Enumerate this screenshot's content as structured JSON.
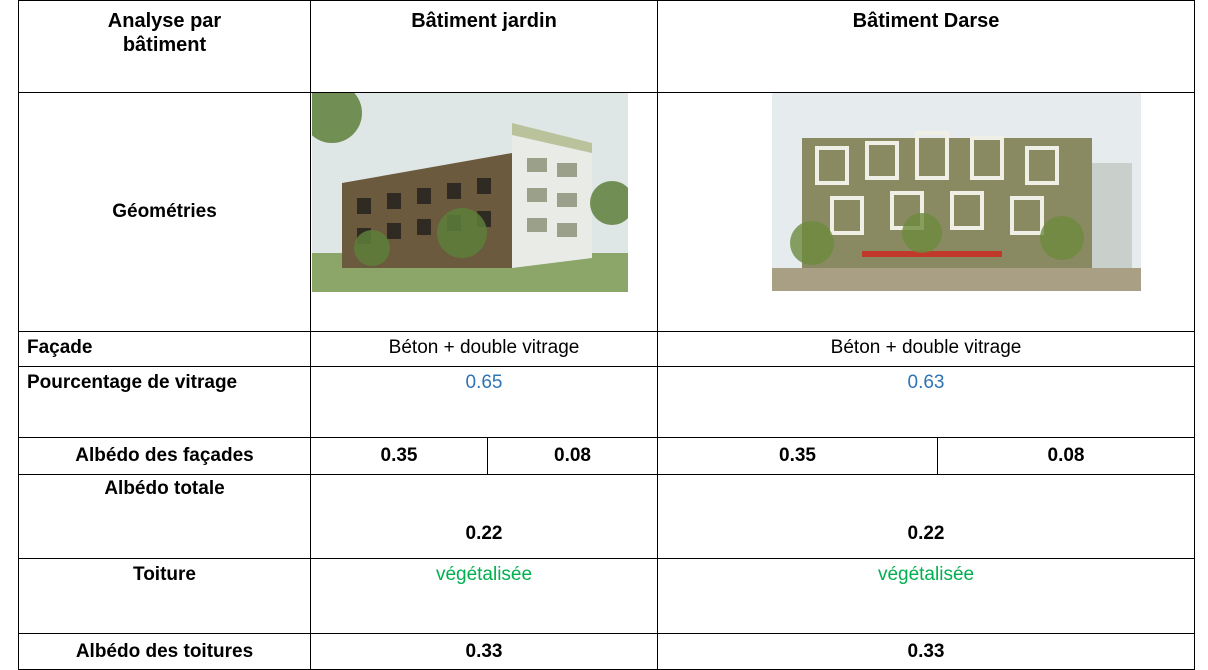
{
  "header": {
    "title_col": "Analyse par bâtiment",
    "buildings": [
      "Bâtiment jardin",
      "Bâtiment Darse"
    ]
  },
  "rows": {
    "geometry": {
      "label": "Géométries"
    },
    "facade": {
      "label": "Façade",
      "values": [
        "Béton + double vitrage",
        "Béton + double vitrage"
      ]
    },
    "glazing": {
      "label": "Pourcentage de vitrage",
      "values": [
        0.65,
        0.63
      ]
    },
    "facade_albedo": {
      "label": "Albédo des façades",
      "values": [
        [
          0.35,
          0.08
        ],
        [
          0.35,
          0.08
        ]
      ]
    },
    "total_albedo": {
      "label": "Albédo totale",
      "values": [
        0.22,
        0.22
      ]
    },
    "roof": {
      "label": "Toiture",
      "values": [
        "végétalisée",
        "végétalisée"
      ]
    },
    "roof_albedo": {
      "label": "Albédo des toitures",
      "values": [
        0.33,
        0.33
      ]
    }
  }
}
